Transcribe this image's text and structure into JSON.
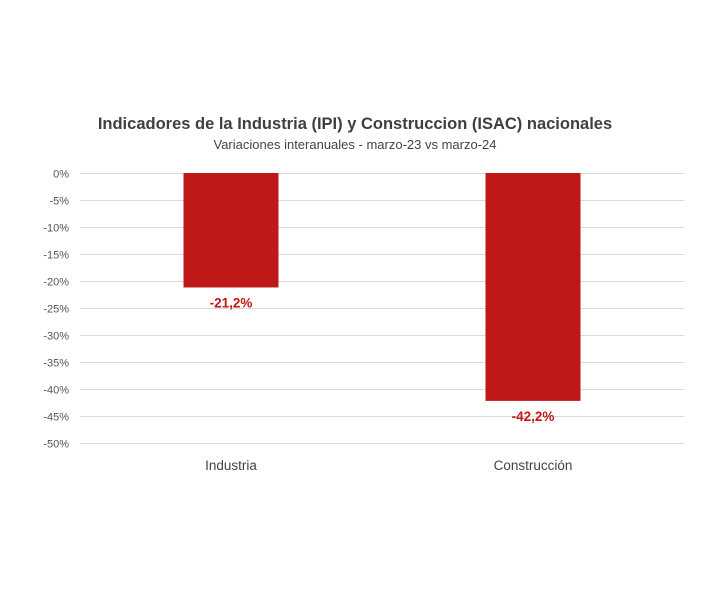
{
  "chart_data": {
    "type": "bar",
    "title": "Indicadores de la Industria (IPI) y Construccion (ISAC) nacionales",
    "subtitle": "Variaciones interanuales - marzo-23  vs marzo-24",
    "categories": [
      "Industria",
      "Construcción"
    ],
    "values": [
      -21.2,
      -42.2
    ],
    "data_labels": [
      "-21,2%",
      "-42,2%"
    ],
    "ylim": [
      -50,
      0
    ],
    "y_ticks": [
      0,
      -5,
      -10,
      -15,
      -20,
      -25,
      -30,
      -35,
      -40,
      -45,
      -50
    ],
    "y_tick_labels": [
      "0%",
      "-5%",
      "-10%",
      "-15%",
      "-20%",
      "-25%",
      "-30%",
      "-35%",
      "-40%",
      "-45%",
      "-50%"
    ],
    "xlabel": "",
    "ylabel": "",
    "grid": true,
    "legend": "none",
    "colors": {
      "bar": "#be1819",
      "data_label": "#be1819"
    }
  }
}
